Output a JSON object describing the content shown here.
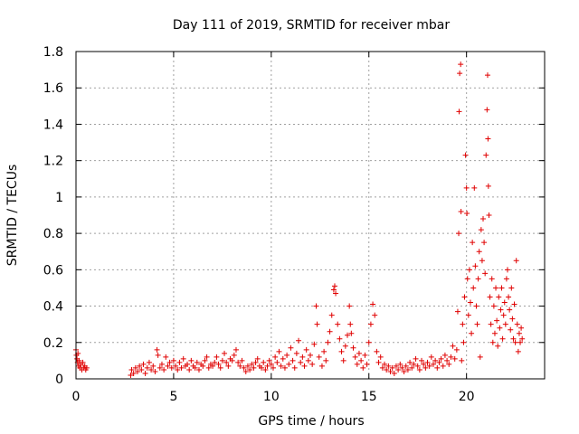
{
  "chart_data": {
    "type": "scatter",
    "title": "Day 111 of 2019, SRMTID for receiver mbar",
    "xlabel": "GPS time / hours",
    "ylabel": "SRMTID / TECUs",
    "xlim": [
      0,
      24
    ],
    "ylim": [
      0,
      1.8
    ],
    "grid": true,
    "marker": "+",
    "x_ticks": [
      0,
      5,
      10,
      15,
      20
    ],
    "y_ticks": [
      0,
      0.2,
      0.4,
      0.6,
      0.8,
      1,
      1.2,
      1.4,
      1.6,
      1.8
    ],
    "x_tick_labels": [
      "0",
      "5",
      "10",
      "15",
      "20"
    ],
    "y_tick_labels": [
      "0",
      "0.2",
      "0.4",
      "0.6",
      "0.8",
      "1",
      "1.2",
      "1.4",
      "1.6",
      "1.8"
    ],
    "series": [
      {
        "name": "SRMTID mbar",
        "color": "#e00000",
        "points": [
          [
            0.0,
            0.16
          ],
          [
            0.02,
            0.13
          ],
          [
            0.05,
            0.11
          ],
          [
            0.08,
            0.09
          ],
          [
            0.1,
            0.14
          ],
          [
            0.13,
            0.07
          ],
          [
            0.16,
            0.1
          ],
          [
            0.2,
            0.06
          ],
          [
            0.25,
            0.08
          ],
          [
            0.3,
            0.05
          ],
          [
            0.35,
            0.09
          ],
          [
            0.4,
            0.06
          ],
          [
            0.45,
            0.07
          ],
          [
            0.5,
            0.05
          ],
          [
            0.55,
            0.06
          ],
          [
            2.8,
            0.02
          ],
          [
            2.85,
            0.05
          ],
          [
            2.95,
            0.03
          ],
          [
            3.05,
            0.06
          ],
          [
            3.15,
            0.04
          ],
          [
            3.25,
            0.07
          ],
          [
            3.35,
            0.05
          ],
          [
            3.45,
            0.08
          ],
          [
            3.55,
            0.03
          ],
          [
            3.65,
            0.06
          ],
          [
            3.75,
            0.09
          ],
          [
            3.85,
            0.05
          ],
          [
            3.95,
            0.07
          ],
          [
            4.05,
            0.04
          ],
          [
            4.15,
            0.16
          ],
          [
            4.2,
            0.13
          ],
          [
            4.3,
            0.06
          ],
          [
            4.4,
            0.08
          ],
          [
            4.5,
            0.05
          ],
          [
            4.6,
            0.12
          ],
          [
            4.7,
            0.07
          ],
          [
            4.8,
            0.09
          ],
          [
            4.9,
            0.06
          ],
          [
            5.0,
            0.1
          ],
          [
            5.1,
            0.07
          ],
          [
            5.2,
            0.05
          ],
          [
            5.3,
            0.09
          ],
          [
            5.4,
            0.06
          ],
          [
            5.5,
            0.11
          ],
          [
            5.6,
            0.07
          ],
          [
            5.7,
            0.08
          ],
          [
            5.8,
            0.05
          ],
          [
            5.9,
            0.1
          ],
          [
            6.0,
            0.07
          ],
          [
            6.1,
            0.06
          ],
          [
            6.2,
            0.09
          ],
          [
            6.3,
            0.05
          ],
          [
            6.4,
            0.08
          ],
          [
            6.5,
            0.07
          ],
          [
            6.6,
            0.1
          ],
          [
            6.7,
            0.12
          ],
          [
            6.8,
            0.06
          ],
          [
            6.9,
            0.08
          ],
          [
            7.0,
            0.07
          ],
          [
            7.1,
            0.09
          ],
          [
            7.2,
            0.12
          ],
          [
            7.3,
            0.08
          ],
          [
            7.4,
            0.06
          ],
          [
            7.5,
            0.1
          ],
          [
            7.6,
            0.14
          ],
          [
            7.7,
            0.09
          ],
          [
            7.8,
            0.07
          ],
          [
            7.9,
            0.11
          ],
          [
            8.0,
            0.1
          ],
          [
            8.1,
            0.13
          ],
          [
            8.2,
            0.16
          ],
          [
            8.3,
            0.09
          ],
          [
            8.4,
            0.07
          ],
          [
            8.5,
            0.1
          ],
          [
            8.6,
            0.06
          ],
          [
            8.7,
            0.04
          ],
          [
            8.8,
            0.07
          ],
          [
            8.9,
            0.05
          ],
          [
            9.0,
            0.08
          ],
          [
            9.1,
            0.06
          ],
          [
            9.2,
            0.09
          ],
          [
            9.3,
            0.11
          ],
          [
            9.4,
            0.07
          ],
          [
            9.5,
            0.06
          ],
          [
            9.6,
            0.09
          ],
          [
            9.7,
            0.05
          ],
          [
            9.8,
            0.07
          ],
          [
            9.9,
            0.1
          ],
          [
            10.0,
            0.08
          ],
          [
            10.1,
            0.06
          ],
          [
            10.2,
            0.12
          ],
          [
            10.3,
            0.09
          ],
          [
            10.4,
            0.15
          ],
          [
            10.5,
            0.07
          ],
          [
            10.6,
            0.11
          ],
          [
            10.7,
            0.06
          ],
          [
            10.8,
            0.13
          ],
          [
            10.9,
            0.08
          ],
          [
            11.0,
            0.17
          ],
          [
            11.1,
            0.1
          ],
          [
            11.2,
            0.06
          ],
          [
            11.3,
            0.14
          ],
          [
            11.4,
            0.21
          ],
          [
            11.5,
            0.09
          ],
          [
            11.6,
            0.12
          ],
          [
            11.7,
            0.07
          ],
          [
            11.8,
            0.16
          ],
          [
            11.9,
            0.1
          ],
          [
            12.0,
            0.13
          ],
          [
            12.1,
            0.08
          ],
          [
            12.2,
            0.19
          ],
          [
            12.3,
            0.4
          ],
          [
            12.35,
            0.3
          ],
          [
            12.45,
            0.12
          ],
          [
            12.6,
            0.07
          ],
          [
            12.7,
            0.15
          ],
          [
            12.8,
            0.1
          ],
          [
            12.9,
            0.2
          ],
          [
            13.0,
            0.26
          ],
          [
            13.1,
            0.35
          ],
          [
            13.2,
            0.49
          ],
          [
            13.25,
            0.51
          ],
          [
            13.3,
            0.47
          ],
          [
            13.4,
            0.3
          ],
          [
            13.5,
            0.22
          ],
          [
            13.6,
            0.15
          ],
          [
            13.7,
            0.1
          ],
          [
            13.8,
            0.18
          ],
          [
            13.9,
            0.24
          ],
          [
            14.0,
            0.4
          ],
          [
            14.05,
            0.3
          ],
          [
            14.1,
            0.25
          ],
          [
            14.2,
            0.17
          ],
          [
            14.3,
            0.12
          ],
          [
            14.4,
            0.08
          ],
          [
            14.5,
            0.14
          ],
          [
            14.6,
            0.1
          ],
          [
            14.7,
            0.06
          ],
          [
            14.8,
            0.13
          ],
          [
            14.9,
            0.08
          ],
          [
            15.0,
            0.2
          ],
          [
            15.1,
            0.3
          ],
          [
            15.2,
            0.41
          ],
          [
            15.3,
            0.35
          ],
          [
            15.4,
            0.15
          ],
          [
            15.5,
            0.09
          ],
          [
            15.6,
            0.12
          ],
          [
            15.7,
            0.06
          ],
          [
            15.8,
            0.08
          ],
          [
            15.9,
            0.05
          ],
          [
            16.0,
            0.07
          ],
          [
            16.1,
            0.04
          ],
          [
            16.2,
            0.06
          ],
          [
            16.3,
            0.03
          ],
          [
            16.4,
            0.07
          ],
          [
            16.5,
            0.05
          ],
          [
            16.6,
            0.08
          ],
          [
            16.7,
            0.06
          ],
          [
            16.8,
            0.04
          ],
          [
            16.9,
            0.07
          ],
          [
            17.0,
            0.05
          ],
          [
            17.1,
            0.09
          ],
          [
            17.2,
            0.06
          ],
          [
            17.3,
            0.08
          ],
          [
            17.4,
            0.11
          ],
          [
            17.5,
            0.07
          ],
          [
            17.6,
            0.05
          ],
          [
            17.7,
            0.1
          ],
          [
            17.8,
            0.08
          ],
          [
            17.9,
            0.06
          ],
          [
            18.0,
            0.09
          ],
          [
            18.1,
            0.07
          ],
          [
            18.2,
            0.12
          ],
          [
            18.3,
            0.08
          ],
          [
            18.4,
            0.1
          ],
          [
            18.5,
            0.06
          ],
          [
            18.6,
            0.09
          ],
          [
            18.7,
            0.11
          ],
          [
            18.8,
            0.07
          ],
          [
            18.9,
            0.13
          ],
          [
            19.0,
            0.1
          ],
          [
            19.1,
            0.08
          ],
          [
            19.2,
            0.12
          ],
          [
            19.3,
            0.18
          ],
          [
            19.4,
            0.11
          ],
          [
            19.5,
            0.16
          ],
          [
            19.55,
            0.37
          ],
          [
            19.6,
            0.8
          ],
          [
            19.62,
            1.47
          ],
          [
            19.65,
            1.68
          ],
          [
            19.7,
            1.73
          ],
          [
            19.72,
            0.92
          ],
          [
            19.75,
            0.1
          ],
          [
            19.8,
            0.3
          ],
          [
            19.85,
            0.2
          ],
          [
            19.9,
            0.45
          ],
          [
            19.95,
            1.23
          ],
          [
            20.0,
            1.05
          ],
          [
            20.02,
            0.91
          ],
          [
            20.05,
            0.55
          ],
          [
            20.1,
            0.35
          ],
          [
            20.15,
            0.6
          ],
          [
            20.2,
            0.42
          ],
          [
            20.25,
            0.25
          ],
          [
            20.3,
            0.75
          ],
          [
            20.35,
            0.5
          ],
          [
            20.4,
            1.05
          ],
          [
            20.45,
            0.62
          ],
          [
            20.5,
            0.4
          ],
          [
            20.55,
            0.3
          ],
          [
            20.6,
            0.55
          ],
          [
            20.65,
            0.7
          ],
          [
            20.7,
            0.12
          ],
          [
            20.75,
            0.82
          ],
          [
            20.8,
            0.65
          ],
          [
            20.85,
            0.88
          ],
          [
            20.9,
            0.75
          ],
          [
            20.95,
            0.58
          ],
          [
            21.0,
            1.23
          ],
          [
            21.05,
            1.48
          ],
          [
            21.08,
            1.67
          ],
          [
            21.1,
            1.32
          ],
          [
            21.12,
            1.06
          ],
          [
            21.15,
            0.9
          ],
          [
            21.2,
            0.45
          ],
          [
            21.25,
            0.3
          ],
          [
            21.3,
            0.55
          ],
          [
            21.35,
            0.2
          ],
          [
            21.4,
            0.4
          ],
          [
            21.45,
            0.25
          ],
          [
            21.5,
            0.5
          ],
          [
            21.55,
            0.32
          ],
          [
            21.6,
            0.18
          ],
          [
            21.65,
            0.45
          ],
          [
            21.7,
            0.28
          ],
          [
            21.75,
            0.38
          ],
          [
            21.8,
            0.5
          ],
          [
            21.85,
            0.22
          ],
          [
            21.9,
            0.35
          ],
          [
            21.95,
            0.42
          ],
          [
            22.0,
            0.3
          ],
          [
            22.05,
            0.55
          ],
          [
            22.1,
            0.6
          ],
          [
            22.15,
            0.45
          ],
          [
            22.2,
            0.38
          ],
          [
            22.25,
            0.27
          ],
          [
            22.3,
            0.5
          ],
          [
            22.35,
            0.33
          ],
          [
            22.4,
            0.22
          ],
          [
            22.45,
            0.41
          ],
          [
            22.5,
            0.2
          ],
          [
            22.55,
            0.65
          ],
          [
            22.6,
            0.3
          ],
          [
            22.65,
            0.15
          ],
          [
            22.7,
            0.25
          ],
          [
            22.75,
            0.2
          ],
          [
            22.8,
            0.28
          ],
          [
            22.85,
            0.22
          ]
        ]
      }
    ]
  }
}
